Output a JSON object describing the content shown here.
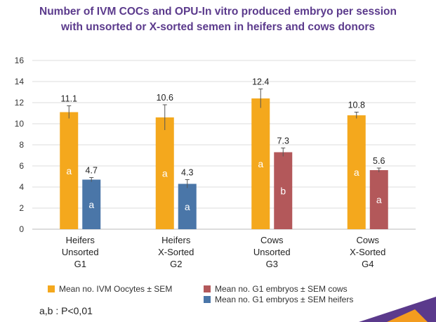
{
  "chart_data": {
    "type": "bar",
    "title": "Number of IVM COCs and OPU-In vitro produced embryo per session with unsorted or X-sorted semen in heifers and cows donors",
    "title_lines": [
      "Number of IVM COCs and OPU-In vitro produced embryo per session",
      "with unsorted or X-sorted semen in heifers and cows donors"
    ],
    "categories": [
      {
        "lines": [
          "Heifers",
          "Unsorted",
          "G1"
        ]
      },
      {
        "lines": [
          "Heifers",
          "X-Sorted",
          "G2"
        ]
      },
      {
        "lines": [
          "Cows",
          "Unsorted",
          "G3"
        ]
      },
      {
        "lines": [
          "Cows",
          "X-Sorted",
          "G4"
        ]
      }
    ],
    "ylim": [
      0,
      16
    ],
    "yticks": [
      0,
      2,
      4,
      6,
      8,
      10,
      12,
      14,
      16
    ],
    "grid": true,
    "series": [
      {
        "name": "Mean no. IVM Oocytes ± SEM",
        "color": "#f4a81d",
        "values": [
          11.1,
          10.6,
          12.4,
          10.8
        ],
        "errors": [
          0.6,
          1.2,
          0.9,
          0.3
        ],
        "labels": [
          "11.1",
          "10.6",
          "12.4",
          "10.8"
        ],
        "letters": [
          "a",
          "a",
          "a",
          "a"
        ]
      },
      {
        "name": "Mean no. G1 embryos ± SEM heifers / cows",
        "values": [
          4.7,
          4.3,
          7.3,
          5.6
        ],
        "errors": [
          0.2,
          0.4,
          0.4,
          0.2
        ],
        "labels": [
          "4.7",
          "4.3",
          "7.3",
          "5.6"
        ],
        "letters": [
          "a",
          "a",
          "b",
          "a"
        ],
        "colors": [
          "#4a76a8",
          "#4a76a8",
          "#b3585a",
          "#b3585a"
        ]
      }
    ],
    "legend": [
      {
        "label": "Mean no. IVM Oocytes ± SEM",
        "color": "#f4a81d"
      },
      {
        "label": "Mean no. G1 embryos ± SEM cows",
        "color": "#b3585a"
      },
      {
        "label": "Mean no. G1 embryos ± SEM heifers",
        "color": "#4a76a8"
      }
    ],
    "legend_position": "bottom"
  },
  "note": "a,b : P<0,01",
  "colors": {
    "title": "#5b3a8c",
    "grid": "#dddddd",
    "axis": "#bbbbbb",
    "deco_orange": "#f39c1f",
    "deco_purple": "#5b3a8c"
  }
}
